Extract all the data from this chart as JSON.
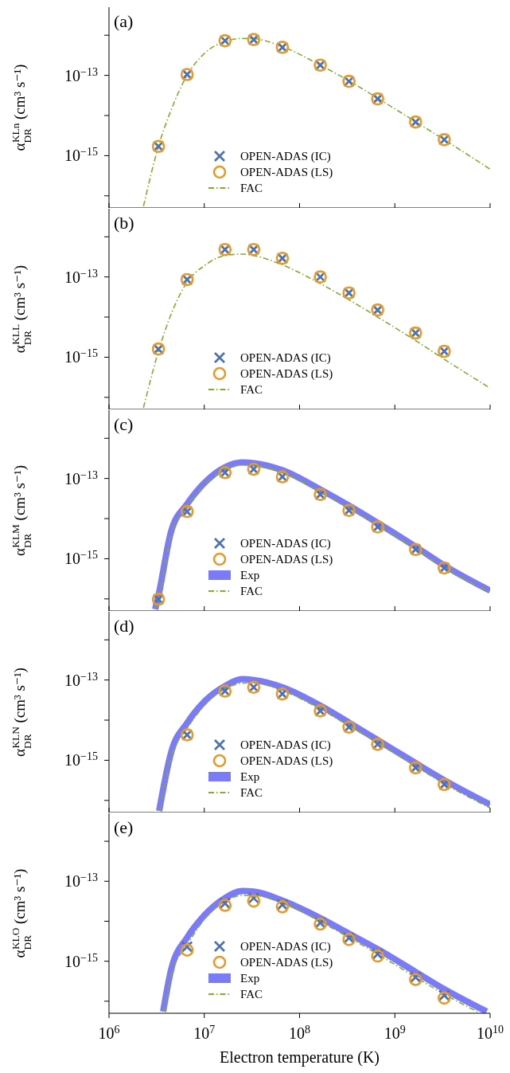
{
  "chart_data": [
    {
      "type": "scatter",
      "ylabel": "α$_{DR}$$^{KLn}$ (cm³ s⁻¹)",
      "annotations": [
        "(a)"
      ],
      "xlim": [
        1000000,
        10000000000
      ],
      "xticks": [
        {
          "value": 1000000,
          "label": null
        },
        {
          "value": 10000000,
          "label": null
        },
        {
          "value": 100000000,
          "label": null
        },
        {
          "value": 1000000000,
          "label": null
        },
        {
          "value": 10000000000,
          "label": null
        }
      ],
      "ylim": [
        5e-17,
        5e-12
      ],
      "yticks": [
        {
          "value": 1e-16,
          "label": null
        },
        {
          "value": 1e-15,
          "label": "10$^{−15}$"
        },
        {
          "value": 1e-14,
          "label": null
        },
        {
          "value": 1e-13,
          "label": "10$^{−13}$"
        },
        {
          "value": 1e-12,
          "label": null
        }
      ],
      "log": "xy",
      "legend": "bottom",
      "tick_labels": "y",
      "series": [
        {
          "name": "OPEN-ADAS (IC)",
          "type": "scatter",
          "marker": "cross",
          "color": "#4c72b0",
          "x": [
            3300000,
            6600000,
            16500000,
            33000000,
            66000000,
            165000000,
            330000000,
            660000000,
            1650000000,
            3300000000
          ],
          "values": [
            1.7e-15,
            1.05e-13,
            7.3e-13,
            7.8e-13,
            5e-13,
            1.8e-13,
            7.1e-14,
            2.6e-14,
            6.9e-15,
            2.5e-15
          ]
        },
        {
          "name": "OPEN-ADAS (LS)",
          "type": "scatter",
          "marker": "circle",
          "color": "#e69a2c",
          "x": [
            3300000,
            6600000,
            16500000,
            33000000,
            66000000,
            165000000,
            330000000,
            660000000,
            1650000000,
            3300000000
          ],
          "values": [
            1.7e-15,
            1.05e-13,
            7.3e-13,
            7.8e-13,
            5e-13,
            1.8e-13,
            7.1e-14,
            2.6e-14,
            6.9e-15,
            2.5e-15
          ]
        },
        {
          "name": "FAC",
          "type": "line",
          "marker": "none",
          "line_style": "dashdot",
          "color": "#82ad2e",
          "x": [
            2300000,
            3300000,
            4500000,
            6600000,
            10000000,
            16500000,
            25000000,
            33000000,
            66000000,
            165000000,
            330000000,
            660000000,
            1650000000,
            3300000000,
            10000000000
          ],
          "values": [
            5.5e-17,
            1.7e-15,
            1.4e-14,
            1e-13,
            3.5e-13,
            7e-13,
            8.3e-13,
            8.2e-13,
            5.2e-13,
            1.8e-13,
            7.3e-14,
            2.7e-14,
            7e-15,
            2.5e-15,
            4.6e-16
          ]
        }
      ]
    },
    {
      "type": "scatter",
      "ylabel": "α$_{DR}$$^{KLL}$ (cm³ s⁻¹)",
      "annotations": [
        "(b)"
      ],
      "xlim": [
        1000000,
        10000000000
      ],
      "xticks": [
        {
          "value": 1000000,
          "label": null
        },
        {
          "value": 10000000,
          "label": null
        },
        {
          "value": 100000000,
          "label": null
        },
        {
          "value": 1000000000,
          "label": null
        },
        {
          "value": 10000000000,
          "label": null
        }
      ],
      "ylim": [
        5e-17,
        5e-12
      ],
      "yticks": [
        {
          "value": 1e-16,
          "label": null
        },
        {
          "value": 1e-15,
          "label": "10$^{−15}$"
        },
        {
          "value": 1e-14,
          "label": null
        },
        {
          "value": 1e-13,
          "label": "10$^{−13}$"
        },
        {
          "value": 1e-12,
          "label": null
        }
      ],
      "log": "xy",
      "legend": "bottom",
      "tick_labels": "y",
      "series": [
        {
          "name": "OPEN-ADAS (IC)",
          "type": "scatter",
          "marker": "cross",
          "color": "#4c72b0",
          "x": [
            3300000,
            6600000,
            16500000,
            33000000,
            66000000,
            165000000,
            330000000,
            660000000,
            1650000000,
            3300000000
          ],
          "values": [
            1.6e-15,
            8.6e-14,
            4.8e-13,
            4.8e-13,
            2.9e-13,
            1e-13,
            4e-14,
            1.5e-14,
            4e-15,
            1.4e-15
          ]
        },
        {
          "name": "OPEN-ADAS (LS)",
          "type": "scatter",
          "marker": "circle",
          "color": "#e69a2c",
          "x": [
            3300000,
            6600000,
            16500000,
            33000000,
            66000000,
            165000000,
            330000000,
            660000000,
            1650000000,
            3300000000
          ],
          "values": [
            1.6e-15,
            8.6e-14,
            4.8e-13,
            4.8e-13,
            2.9e-13,
            1e-13,
            4e-14,
            1.5e-14,
            4e-15,
            1.4e-15
          ]
        },
        {
          "name": "FAC",
          "type": "line",
          "marker": "none",
          "line_style": "dashdot",
          "color": "#82ad2e",
          "x": [
            2300000,
            3300000,
            4500000,
            6600000,
            10000000,
            16500000,
            25000000,
            33000000,
            66000000,
            165000000,
            330000000,
            660000000,
            1650000000,
            3300000000,
            10000000000
          ],
          "values": [
            5.5e-17,
            1.4e-15,
            1.2e-14,
            7.4e-14,
            1.9e-13,
            3.4e-13,
            3.7e-13,
            3.4e-13,
            2e-13,
            6.8e-14,
            2.7e-14,
            1e-14,
            2.6e-15,
            8.9e-16,
            1.7e-16
          ]
        }
      ]
    },
    {
      "type": "scatter",
      "ylabel": "α$_{DR}$$^{KLM}$ (cm³ s⁻¹)",
      "annotations": [
        "(c)"
      ],
      "xlim": [
        1000000,
        10000000000
      ],
      "xticks": [
        {
          "value": 1000000,
          "label": null
        },
        {
          "value": 10000000,
          "label": null
        },
        {
          "value": 100000000,
          "label": null
        },
        {
          "value": 1000000000,
          "label": null
        },
        {
          "value": 10000000000,
          "label": null
        }
      ],
      "ylim": [
        5e-17,
        5e-12
      ],
      "yticks": [
        {
          "value": 1e-16,
          "label": null
        },
        {
          "value": 1e-15,
          "label": "10$^{−15}$"
        },
        {
          "value": 1e-14,
          "label": null
        },
        {
          "value": 1e-13,
          "label": "10$^{−13}$"
        },
        {
          "value": 1e-12,
          "label": null
        }
      ],
      "log": "xy",
      "legend": "bottom",
      "tick_labels": "y",
      "series": [
        {
          "name": "OPEN-ADAS (IC)",
          "type": "scatter",
          "marker": "cross",
          "color": "#4c72b0",
          "x": [
            3300000,
            6600000,
            16500000,
            33000000,
            66000000,
            165000000,
            330000000,
            660000000,
            1650000000,
            3300000000
          ],
          "values": [
            9.8e-17,
            1.5e-14,
            1.4e-13,
            1.7e-13,
            1.1e-13,
            4e-14,
            1.6e-14,
            6.2e-15,
            1.7e-15,
            5.9e-16
          ]
        },
        {
          "name": "OPEN-ADAS (LS)",
          "type": "scatter",
          "marker": "circle",
          "color": "#e69a2c",
          "x": [
            3300000,
            6600000,
            16500000,
            33000000,
            66000000,
            165000000,
            330000000,
            660000000,
            1650000000,
            3300000000
          ],
          "values": [
            9.8e-17,
            1.5e-14,
            1.4e-13,
            1.7e-13,
            1.1e-13,
            4e-14,
            1.6e-14,
            6.2e-15,
            1.7e-15,
            5.9e-16
          ]
        },
        {
          "name": "Exp",
          "type": "line",
          "marker": "none",
          "line_style": "solid",
          "color": "#7b7bf7",
          "x": [
            3050000,
            3300000,
            4500000,
            6600000,
            10000000,
            16500000,
            25000000,
            33000000,
            66000000,
            165000000,
            330000000,
            660000000,
            1650000000,
            3300000000,
            10000000000
          ],
          "values": [
            5.5e-17,
            1.2e-16,
            4.9e-15,
            2.3e-14,
            7.7e-14,
            1.9e-13,
            2.5e-13,
            2.4e-13,
            1.6e-13,
            5.3e-14,
            2.1e-14,
            7.8e-15,
            2e-15,
            6.8e-16,
            1.6e-16
          ]
        },
        {
          "name": "FAC",
          "type": "line",
          "marker": "none",
          "line_style": "dashdot",
          "color": "#82ad2e",
          "x": [
            3050000,
            3300000,
            4500000,
            6600000,
            10000000,
            16500000,
            25000000,
            33000000,
            66000000,
            165000000,
            330000000,
            660000000,
            1650000000,
            3300000000,
            10000000000
          ],
          "values": [
            5.5e-17,
            1e-16,
            4e-15,
            2e-14,
            6.6e-14,
            1.7e-13,
            2.2e-13,
            2.1e-13,
            1.4e-13,
            4.6e-14,
            1.8e-14,
            6.8e-15,
            1.75e-15,
            6e-16,
            1.45e-16
          ]
        }
      ]
    },
    {
      "type": "scatter",
      "ylabel": "α$_{DR}$$^{KLN}$ (cm³ s⁻¹)",
      "annotations": [
        "(d)"
      ],
      "xlim": [
        1000000,
        10000000000
      ],
      "xticks": [
        {
          "value": 1000000,
          "label": null
        },
        {
          "value": 10000000,
          "label": null
        },
        {
          "value": 100000000,
          "label": null
        },
        {
          "value": 1000000000,
          "label": null
        },
        {
          "value": 10000000000,
          "label": null
        }
      ],
      "ylim": [
        5e-17,
        5e-12
      ],
      "yticks": [
        {
          "value": 1e-16,
          "label": null
        },
        {
          "value": 1e-15,
          "label": "10$^{−15}$"
        },
        {
          "value": 1e-14,
          "label": null
        },
        {
          "value": 1e-13,
          "label": "10$^{−13}$"
        },
        {
          "value": 1e-12,
          "label": null
        }
      ],
      "log": "xy",
      "legend": "bottom",
      "tick_labels": "y",
      "series": [
        {
          "name": "OPEN-ADAS (IC)",
          "type": "scatter",
          "marker": "cross",
          "color": "#4c72b0",
          "x": [
            6600000,
            16500000,
            33000000,
            66000000,
            165000000,
            330000000,
            660000000,
            1650000000,
            3300000000
          ],
          "values": [
            4.3e-15,
            5.3e-14,
            6.6e-14,
            4.5e-14,
            1.7e-14,
            6.7e-15,
            2.5e-15,
            6.5e-16,
            2.5e-16
          ]
        },
        {
          "name": "OPEN-ADAS (LS)",
          "type": "scatter",
          "marker": "circle",
          "color": "#e69a2c",
          "x": [
            6600000,
            16500000,
            33000000,
            66000000,
            165000000,
            330000000,
            660000000,
            1650000000,
            3300000000
          ],
          "values": [
            4.3e-15,
            5.3e-14,
            6.6e-14,
            4.5e-14,
            1.7e-14,
            6.7e-15,
            2.5e-15,
            6.5e-16,
            2.5e-16
          ]
        },
        {
          "name": "Exp",
          "type": "line",
          "marker": "none",
          "line_style": "solid",
          "color": "#7b7bf7",
          "x": [
            3360000,
            4500000,
            6600000,
            10000000,
            16500000,
            25000000,
            33000000,
            66000000,
            165000000,
            330000000,
            660000000,
            1650000000,
            3300000000,
            10000000000
          ],
          "values": [
            5.5e-17,
            1.6e-15,
            8.5e-15,
            2.9e-14,
            7.1e-14,
            1.05e-13,
            1e-13,
            6.6e-14,
            2.3e-14,
            8.7e-15,
            3.2e-15,
            8.5e-16,
            3.2e-16,
            7.9e-17
          ]
        },
        {
          "name": "FAC",
          "type": "line",
          "marker": "none",
          "line_style": "dashdot",
          "color": "#82ad2e",
          "x": [
            3400000,
            4500000,
            6600000,
            10000000,
            16500000,
            25000000,
            33000000,
            66000000,
            165000000,
            330000000,
            660000000,
            1650000000,
            3300000000,
            10000000000
          ],
          "values": [
            5.5e-17,
            1.2e-15,
            6.2e-15,
            2.3e-14,
            6e-14,
            8.3e-14,
            8.5e-14,
            5.4e-14,
            1.9e-14,
            7.2e-15,
            2.7e-15,
            7.1e-16,
            2.6e-16,
            6.5e-17
          ]
        }
      ]
    },
    {
      "type": "scatter",
      "xlabel": "Electron temperature (K)",
      "ylabel": "α$_{DR}$$^{KLO}$ (cm³ s⁻¹)",
      "annotations": [
        "(e)"
      ],
      "xlim": [
        1000000,
        10000000000
      ],
      "xticks": [
        {
          "value": 1000000,
          "label": "10$^{6}$"
        },
        {
          "value": 10000000,
          "label": "10$^{7}$"
        },
        {
          "value": 100000000,
          "label": "10$^{8}$"
        },
        {
          "value": 1000000000,
          "label": "10$^{9}$"
        },
        {
          "value": 10000000000,
          "label": "10$^{10}$"
        }
      ],
      "ylim": [
        5e-17,
        5e-12
      ],
      "yticks": [
        {
          "value": 1e-16,
          "label": null
        },
        {
          "value": 1e-15,
          "label": "10$^{−15}$"
        },
        {
          "value": 1e-14,
          "label": null
        },
        {
          "value": 1e-13,
          "label": "10$^{−13}$"
        },
        {
          "value": 1e-12,
          "label": null
        }
      ],
      "log": "xy",
      "legend": "bottom",
      "series": [
        {
          "name": "OPEN-ADAS (IC)",
          "type": "scatter",
          "marker": "cross",
          "color": "#4c72b0",
          "x": [
            6600000,
            16500000,
            33000000,
            66000000,
            165000000,
            330000000,
            660000000,
            1650000000,
            3300000000
          ],
          "values": [
            2.3e-15,
            2.8e-14,
            3.8e-14,
            2.6e-14,
            9.1e-15,
            3.8e-15,
            1.5e-15,
            4e-16,
            1.4e-16
          ]
        },
        {
          "name": "OPEN-ADAS (LS)",
          "type": "scatter",
          "marker": "circle",
          "color": "#e69a2c",
          "x": [
            6600000,
            16500000,
            33000000,
            66000000,
            165000000,
            330000000,
            660000000,
            1650000000,
            3300000000
          ],
          "values": [
            1.9e-15,
            2.5e-14,
            3.2e-14,
            2.3e-14,
            8.5e-15,
            3.5e-15,
            1.35e-15,
            3.5e-16,
            1.2e-16
          ]
        },
        {
          "name": "Exp",
          "type": "line",
          "marker": "none",
          "line_style": "solid",
          "color": "#7b7bf7",
          "x": [
            3700000,
            4500000,
            6600000,
            10000000,
            16500000,
            25000000,
            33000000,
            66000000,
            165000000,
            330000000,
            660000000,
            1650000000,
            3300000000,
            9200000000
          ],
          "values": [
            5.5e-17,
            6.3e-16,
            3.9e-15,
            1.4e-14,
            3.8e-14,
            5.7e-14,
            5.5e-14,
            3.3e-14,
            1.2e-14,
            4.9e-15,
            2e-15,
            5.4e-16,
            2e-16,
            5.5e-17
          ]
        },
        {
          "name": "FAC",
          "type": "line",
          "marker": "none",
          "line_style": "dashdot",
          "color": "#82ad2e",
          "x": [
            3800000,
            4500000,
            6600000,
            10000000,
            16500000,
            25000000,
            33000000,
            66000000,
            165000000,
            330000000,
            660000000,
            1650000000,
            3300000000,
            7300000000
          ],
          "values": [
            5.5e-17,
            4.7e-16,
            2.5e-15,
            1.1e-14,
            3.1e-14,
            4.4e-14,
            4.4e-14,
            2.9e-14,
            9.8e-15,
            3.9e-15,
            1.5e-15,
            4e-16,
            1.5e-16,
            5.5e-17
          ]
        }
      ]
    }
  ]
}
